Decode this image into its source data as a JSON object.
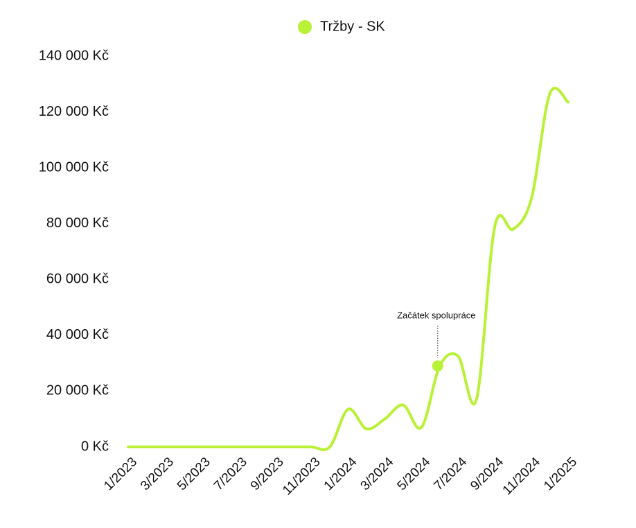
{
  "chart_data": {
    "type": "line",
    "categories": [
      "1/2023",
      null,
      "3/2023",
      null,
      "5/2023",
      null,
      "7/2023",
      null,
      "9/2023",
      null,
      "11/2023",
      null,
      "1/2024",
      null,
      "3/2024",
      null,
      "5/2024",
      null,
      "7/2024",
      null,
      "9/2024",
      null,
      "11/2024",
      null,
      "1/2025"
    ],
    "series": [
      {
        "name": "Tržby - SK",
        "color": "#b8f135",
        "values": [
          0,
          0,
          0,
          0,
          0,
          0,
          0,
          0,
          0,
          0,
          0,
          0,
          13500,
          6500,
          10000,
          15000,
          7000,
          29000,
          32500,
          17000,
          79000,
          78000,
          89000,
          126500,
          123500
        ]
      }
    ],
    "ylim": [
      0,
      140000
    ],
    "yticks": [
      {
        "value": 0,
        "label": "0 Kč"
      },
      {
        "value": 20000,
        "label": "20 000 Kč"
      },
      {
        "value": 40000,
        "label": "40 000 Kč"
      },
      {
        "value": 60000,
        "label": "60 000 Kč"
      },
      {
        "value": 80000,
        "label": "80 000 Kč"
      },
      {
        "value": 100000,
        "label": "100 000 Kč"
      },
      {
        "value": 120000,
        "label": "120 000 Kč"
      },
      {
        "value": 140000,
        "label": "140 000 Kč"
      }
    ],
    "grid": false,
    "legend": "top",
    "annotations": [
      {
        "text": "Začátek spolupráce"
      }
    ]
  }
}
